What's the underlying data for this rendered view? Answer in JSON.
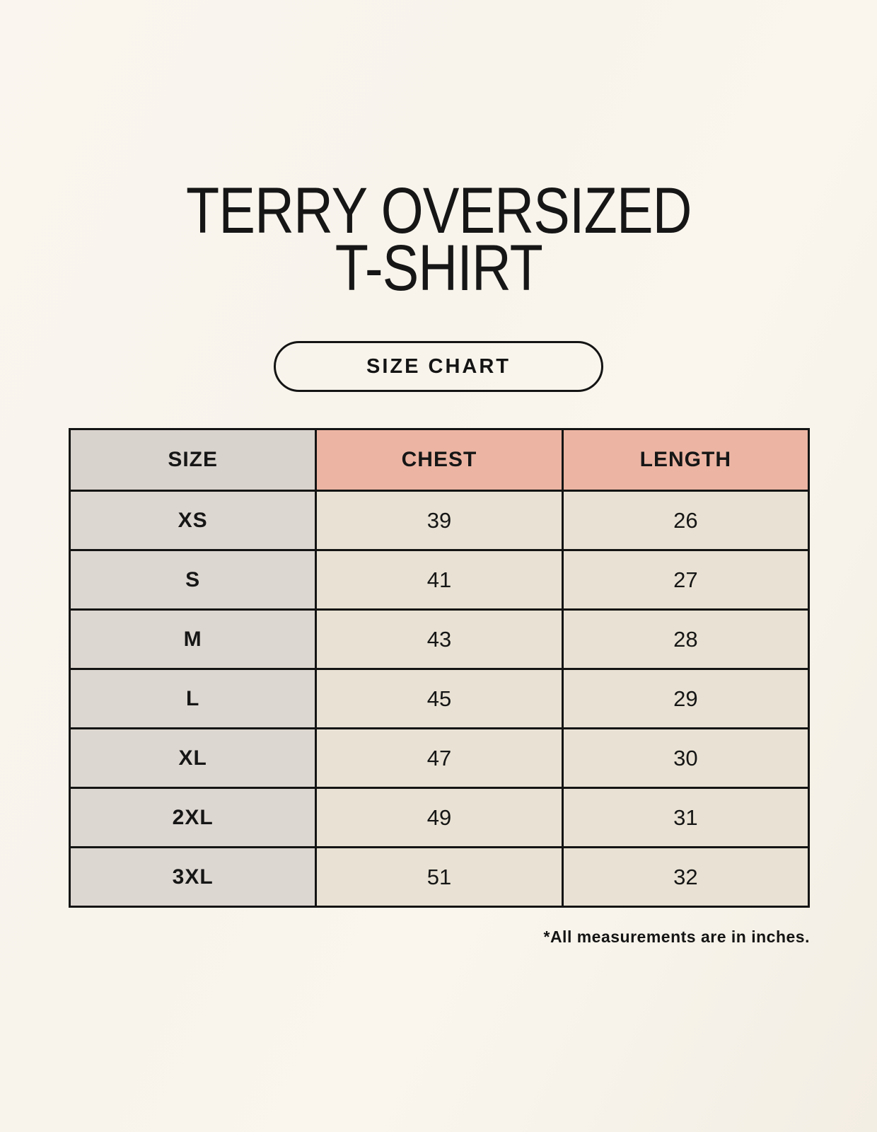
{
  "header": {
    "title_line1": "TERRY OVERSIZED",
    "title_line2": "T-SHIRT",
    "size_chart_label": "SIZE CHART"
  },
  "chart_data": {
    "type": "table",
    "title": "TERRY OVERSIZED T-SHIRT",
    "columns": [
      "SIZE",
      "CHEST",
      "LENGTH"
    ],
    "rows": [
      [
        "XS",
        "39",
        "26"
      ],
      [
        "S",
        "41",
        "27"
      ],
      [
        "M",
        "43",
        "28"
      ],
      [
        "L",
        "45",
        "29"
      ],
      [
        "XL",
        "47",
        "30"
      ],
      [
        "2XL",
        "49",
        "31"
      ],
      [
        "3XL",
        "51",
        "32"
      ]
    ],
    "units": "inches",
    "footnote": "*All measurements are in inches."
  },
  "colors": {
    "background": "#f8f4ec",
    "header_size_bg": "#d9d3cd",
    "header_accent_bg": "#ecb5a3",
    "row_label_bg": "#ddd7d1",
    "row_value_bg": "#e9e2d4",
    "border": "#141414",
    "text": "#161616"
  }
}
